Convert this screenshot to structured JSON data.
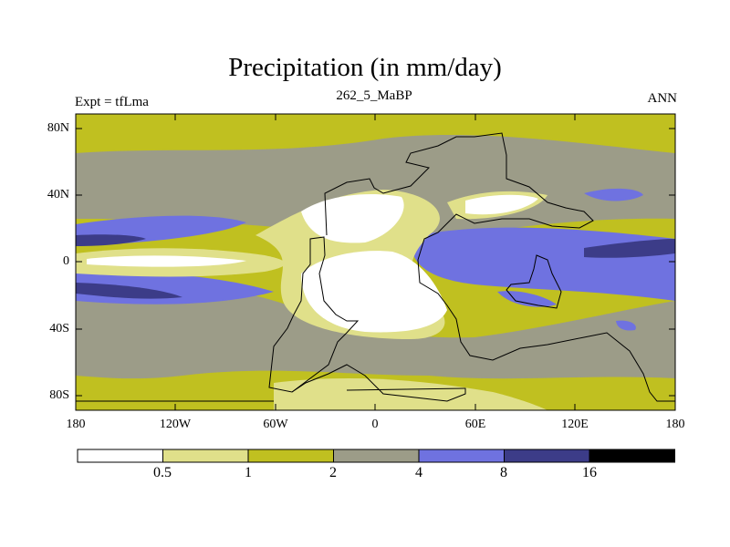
{
  "title": "Precipitation (in mm/day)",
  "subtitle_left": "Expt = tfLma",
  "subtitle_center": "262_5_MaBP",
  "subtitle_right": "ANN",
  "lat_ticks": [
    "80N",
    "40N",
    "0",
    "40S",
    "80S"
  ],
  "lon_ticks": [
    "180",
    "120W",
    "60W",
    "0",
    "60E",
    "120E",
    "180"
  ],
  "colorbar": {
    "labels": [
      "0.5",
      "1",
      "2",
      "4",
      "8",
      "16"
    ],
    "colors": [
      "#ffffff",
      "#e0e08a",
      "#c0c020",
      "#9c9c88",
      "#6f72e0",
      "#3c3c88",
      "#000000"
    ]
  }
}
